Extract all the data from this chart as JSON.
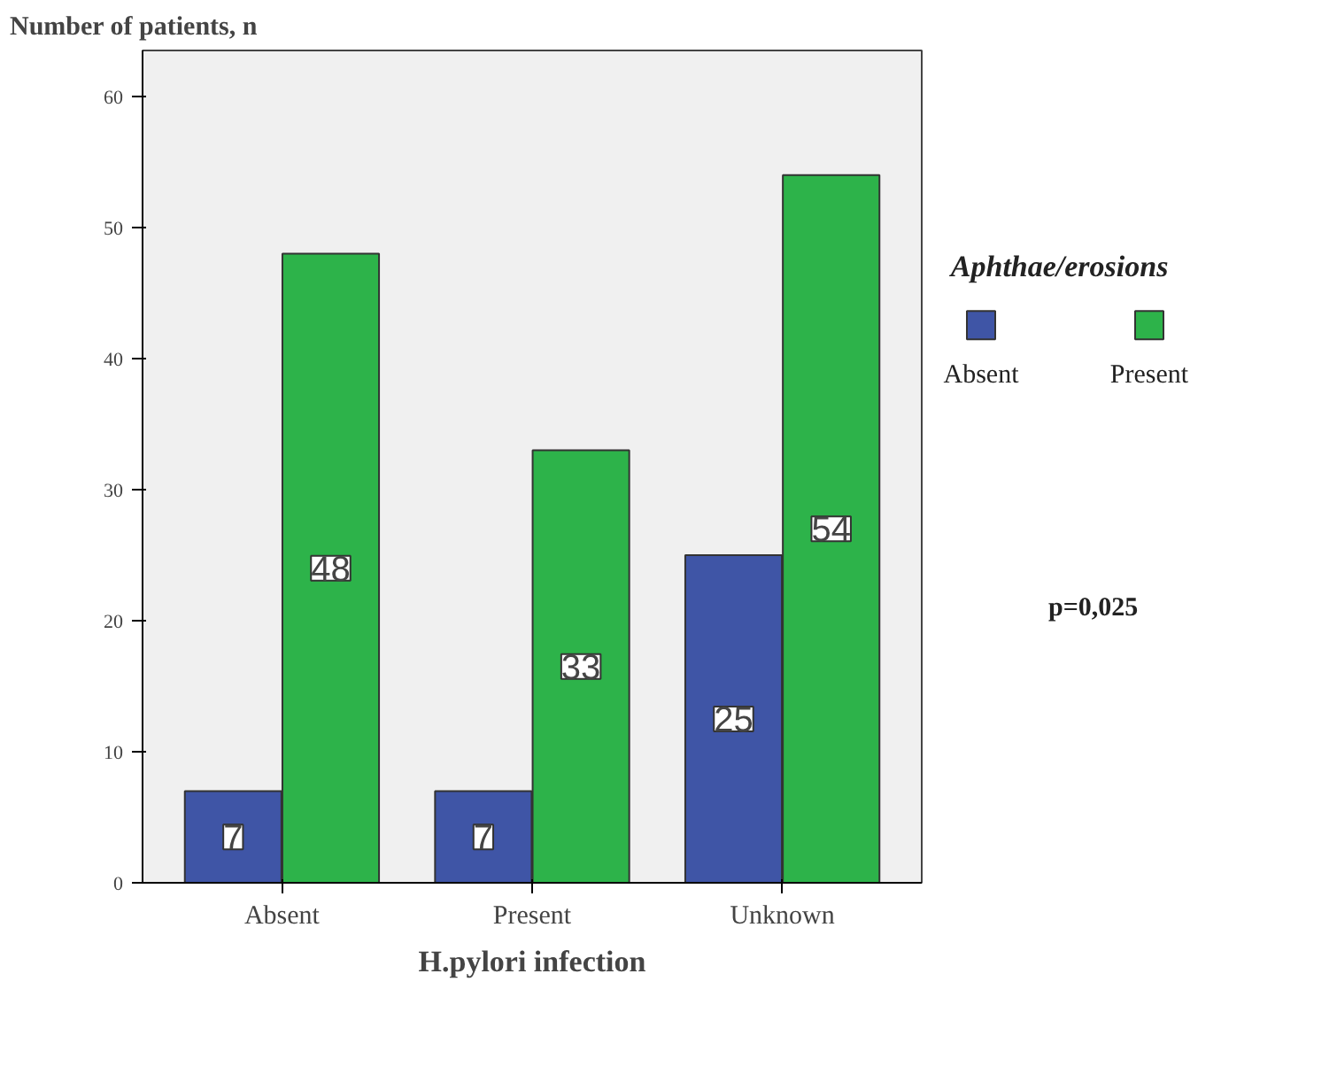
{
  "chart_data": {
    "type": "bar",
    "xlabel": "H.pylori infection",
    "ylabel": "Number of patients, n",
    "legend_title": "Aphthae/erosions",
    "categories": [
      "Absent",
      "Present",
      "Unknown"
    ],
    "series": [
      {
        "name": "Absent",
        "color": "#3f55a6",
        "values": [
          7,
          7,
          25
        ]
      },
      {
        "name": "Present",
        "color": "#2db34a",
        "values": [
          48,
          33,
          54
        ]
      }
    ],
    "ylim": [
      0,
      63.5
    ],
    "yticks": [
      0,
      10,
      20,
      30,
      40,
      50,
      60
    ],
    "data_labels": true,
    "legend": "right",
    "grid": false,
    "annotations": [
      "p=0,025"
    ]
  }
}
